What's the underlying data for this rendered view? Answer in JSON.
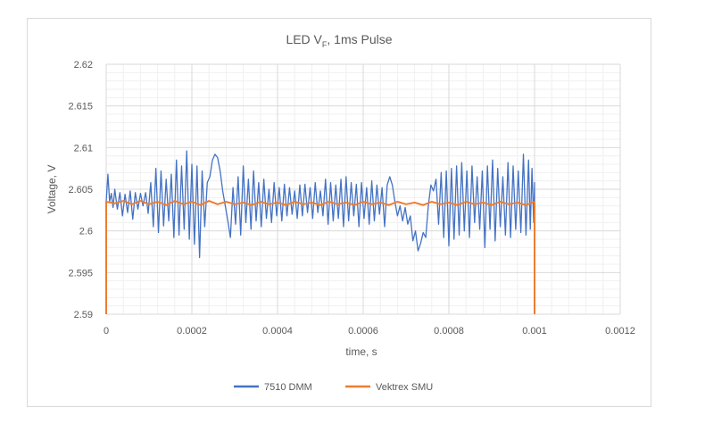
{
  "chart_data": {
    "type": "line",
    "title": "LED V",
    "title_subscript": "F",
    "title_suffix": ", 1ms Pulse",
    "xlabel": "time, s",
    "ylabel": "Voltage, V",
    "xlim": [
      0,
      0.0012
    ],
    "ylim": [
      2.59,
      2.62
    ],
    "x_ticks": [
      "0",
      "0.0002",
      "0.0004",
      "0.0006",
      "0.0008",
      "0.001",
      "0.0012"
    ],
    "y_ticks": [
      "2.59",
      "2.595",
      "2.6",
      "2.605",
      "2.61",
      "2.615",
      "2.62"
    ],
    "grid": true,
    "legend_position": "bottom",
    "series": [
      {
        "name": "7510 DMM",
        "color": "#4472C4",
        "points": [
          [
            0,
            2.59
          ],
          [
            0,
            2.6035
          ],
          [
            4e-06,
            2.6068
          ],
          [
            8e-06,
            2.6035
          ],
          [
            1.2e-05,
            2.6045
          ],
          [
            1.6e-05,
            2.6028
          ],
          [
            2e-05,
            2.605
          ],
          [
            2.6e-05,
            2.6026
          ],
          [
            3.2e-05,
            2.6046
          ],
          [
            3.8e-05,
            2.6018
          ],
          [
            4.4e-05,
            2.6044
          ],
          [
            5e-05,
            2.6022
          ],
          [
            5.6e-05,
            2.6048
          ],
          [
            6.2e-05,
            2.6014
          ],
          [
            6.8e-05,
            2.6046
          ],
          [
            7.4e-05,
            2.6026
          ],
          [
            8e-05,
            2.6045
          ],
          [
            8.6e-05,
            2.603
          ],
          [
            9.2e-05,
            2.6046
          ],
          [
            9.8e-05,
            2.6021
          ],
          [
            0.000104,
            2.6058
          ],
          [
            0.00011,
            2.6005
          ],
          [
            0.000116,
            2.6075
          ],
          [
            0.000122,
            2.5998
          ],
          [
            0.000128,
            2.6072
          ],
          [
            0.000134,
            2.6006
          ],
          [
            0.00014,
            2.6062
          ],
          [
            0.000146,
            2.6012
          ],
          [
            0.000152,
            2.6068
          ],
          [
            0.000158,
            2.5992
          ],
          [
            0.000164,
            2.6085
          ],
          [
            0.00017,
            2.5995
          ],
          [
            0.000176,
            2.6078
          ],
          [
            0.000182,
            2.6002
          ],
          [
            0.000188,
            2.6096
          ],
          [
            0.000194,
            2.599
          ],
          [
            0.0002,
            2.608
          ],
          [
            0.000206,
            2.5984
          ],
          [
            0.000212,
            2.6078
          ],
          [
            0.000218,
            2.5968
          ],
          [
            0.000224,
            2.6072
          ],
          [
            0.00023,
            2.6005
          ],
          [
            0.000236,
            2.6058
          ],
          [
            0.000242,
            2.6065
          ],
          [
            0.000248,
            2.6085
          ],
          [
            0.000254,
            2.6092
          ],
          [
            0.00026,
            2.6088
          ],
          [
            0.000266,
            2.6072
          ],
          [
            0.000272,
            2.6048
          ],
          [
            0.000278,
            2.603
          ],
          [
            0.000284,
            2.6012
          ],
          [
            0.00029,
            2.5992
          ],
          [
            0.000296,
            2.6052
          ],
          [
            0.000302,
            2.6008
          ],
          [
            0.000308,
            2.6065
          ],
          [
            0.000314,
            2.5995
          ],
          [
            0.00032,
            2.6078
          ],
          [
            0.000326,
            2.601
          ],
          [
            0.000332,
            2.6062
          ],
          [
            0.000338,
            2.6002
          ],
          [
            0.000344,
            2.6072
          ],
          [
            0.00035,
            2.6012
          ],
          [
            0.000356,
            2.6058
          ],
          [
            0.000362,
            2.6005
          ],
          [
            0.000368,
            2.6062
          ],
          [
            0.000374,
            2.6015
          ],
          [
            0.00038,
            2.605
          ],
          [
            0.000386,
            2.601
          ],
          [
            0.000392,
            2.6058
          ],
          [
            0.000398,
            2.6018
          ],
          [
            0.000404,
            2.6052
          ],
          [
            0.00041,
            2.6012
          ],
          [
            0.000416,
            2.6056
          ],
          [
            0.000422,
            2.6018
          ],
          [
            0.000428,
            2.6052
          ],
          [
            0.000434,
            2.602
          ],
          [
            0.00044,
            2.6048
          ],
          [
            0.000446,
            2.6015
          ],
          [
            0.000452,
            2.6055
          ],
          [
            0.000458,
            2.6018
          ],
          [
            0.000464,
            2.6056
          ],
          [
            0.00047,
            2.6022
          ],
          [
            0.000476,
            2.6052
          ],
          [
            0.000482,
            2.6015
          ],
          [
            0.000488,
            2.6058
          ],
          [
            0.000494,
            2.6022
          ],
          [
            0.0005,
            2.6048
          ],
          [
            0.000506,
            2.6018
          ],
          [
            0.000512,
            2.6062
          ],
          [
            0.000518,
            2.6008
          ],
          [
            0.000524,
            2.6058
          ],
          [
            0.00053,
            2.6012
          ],
          [
            0.000536,
            2.6055
          ],
          [
            0.000542,
            2.6015
          ],
          [
            0.000548,
            2.6062
          ],
          [
            0.000554,
            2.6005
          ],
          [
            0.00056,
            2.6065
          ],
          [
            0.000566,
            2.6012
          ],
          [
            0.000572,
            2.6058
          ],
          [
            0.000578,
            2.6018
          ],
          [
            0.000584,
            2.6056
          ],
          [
            0.00059,
            2.6005
          ],
          [
            0.000596,
            2.6058
          ],
          [
            0.000602,
            2.6015
          ],
          [
            0.000608,
            2.6052
          ],
          [
            0.000614,
            2.6008
          ],
          [
            0.00062,
            2.606
          ],
          [
            0.000626,
            2.6012
          ],
          [
            0.000632,
            2.6055
          ],
          [
            0.000638,
            2.602
          ],
          [
            0.000644,
            2.6052
          ],
          [
            0.00065,
            2.6005
          ],
          [
            0.000656,
            2.6055
          ],
          [
            0.000662,
            2.6065
          ],
          [
            0.000668,
            2.6055
          ],
          [
            0.000674,
            2.6035
          ],
          [
            0.00068,
            2.6018
          ],
          [
            0.000686,
            2.603
          ],
          [
            0.000692,
            2.6012
          ],
          [
            0.000698,
            2.6028
          ],
          [
            0.000704,
            2.6008
          ],
          [
            0.00071,
            2.6018
          ],
          [
            0.000716,
            2.5988
          ],
          [
            0.000722,
            2.6
          ],
          [
            0.000728,
            2.5976
          ],
          [
            0.000734,
            2.5985
          ],
          [
            0.00074,
            2.5998
          ],
          [
            0.000746,
            2.5992
          ],
          [
            0.000752,
            2.603
          ],
          [
            0.000758,
            2.6055
          ],
          [
            0.000764,
            2.6048
          ],
          [
            0.00077,
            2.6062
          ],
          [
            0.000776,
            2.6008
          ],
          [
            0.000782,
            2.607
          ],
          [
            0.000788,
            2.5992
          ],
          [
            0.000794,
            2.6072
          ],
          [
            0.0008,
            2.5982
          ],
          [
            0.000806,
            2.6075
          ],
          [
            0.000812,
            2.599
          ],
          [
            0.000818,
            2.6078
          ],
          [
            0.000824,
            2.5995
          ],
          [
            0.00083,
            2.6082
          ],
          [
            0.000836,
            2.6
          ],
          [
            0.000842,
            2.6072
          ],
          [
            0.000848,
            2.5992
          ],
          [
            0.000854,
            2.6078
          ],
          [
            0.00086,
            2.601
          ],
          [
            0.000866,
            2.6065
          ],
          [
            0.000872,
            2.6002
          ],
          [
            0.000878,
            2.6072
          ],
          [
            0.000884,
            2.598
          ],
          [
            0.00089,
            2.6078
          ],
          [
            0.000896,
            2.6002
          ],
          [
            0.000902,
            2.6085
          ],
          [
            0.000908,
            2.5988
          ],
          [
            0.000914,
            2.6075
          ],
          [
            0.00092,
            2.6005
          ],
          [
            0.000926,
            2.6065
          ],
          [
            0.000932,
            2.5995
          ],
          [
            0.000938,
            2.6082
          ],
          [
            0.000944,
            2.5992
          ],
          [
            0.00095,
            2.6078
          ],
          [
            0.000956,
            2.6002
          ],
          [
            0.000962,
            2.6072
          ],
          [
            0.000968,
            2.5998
          ],
          [
            0.000974,
            2.6092
          ],
          [
            0.00098,
            2.5995
          ],
          [
            0.000986,
            2.6085
          ],
          [
            0.00099,
            2.6002
          ],
          [
            0.000994,
            2.6075
          ],
          [
            0.000998,
            2.601
          ],
          [
            0.001,
            2.6058
          ],
          [
            0.001,
            2.59
          ]
        ]
      },
      {
        "name": "Vektrex SMU",
        "color": "#ED7D31",
        "points": [
          [
            0,
            2.59
          ],
          [
            0,
            2.6035
          ],
          [
            2e-05,
            2.6033
          ],
          [
            4e-05,
            2.6036
          ],
          [
            6e-05,
            2.6032
          ],
          [
            8e-05,
            2.6036
          ],
          [
            0.0001,
            2.6032
          ],
          [
            0.00012,
            2.6035
          ],
          [
            0.00014,
            2.6031
          ],
          [
            0.00016,
            2.6036
          ],
          [
            0.00018,
            2.6032
          ],
          [
            0.0002,
            2.6035
          ],
          [
            0.00022,
            2.6031
          ],
          [
            0.00024,
            2.6036
          ],
          [
            0.00026,
            2.6032
          ],
          [
            0.00028,
            2.6035
          ],
          [
            0.0003,
            2.6032
          ],
          [
            0.00032,
            2.6034
          ],
          [
            0.00034,
            2.6031
          ],
          [
            0.00036,
            2.6035
          ],
          [
            0.00038,
            2.6032
          ],
          [
            0.0004,
            2.6034
          ],
          [
            0.00042,
            2.6031
          ],
          [
            0.00044,
            2.6035
          ],
          [
            0.00046,
            2.6032
          ],
          [
            0.00048,
            2.6034
          ],
          [
            0.0005,
            2.6031
          ],
          [
            0.00052,
            2.6035
          ],
          [
            0.00054,
            2.6032
          ],
          [
            0.00056,
            2.6034
          ],
          [
            0.00058,
            2.6031
          ],
          [
            0.0006,
            2.6035
          ],
          [
            0.00062,
            2.6032
          ],
          [
            0.00064,
            2.6034
          ],
          [
            0.00066,
            2.6031
          ],
          [
            0.00068,
            2.6035
          ],
          [
            0.0007,
            2.6032
          ],
          [
            0.00072,
            2.6034
          ],
          [
            0.00074,
            2.6031
          ],
          [
            0.00076,
            2.6035
          ],
          [
            0.00078,
            2.6032
          ],
          [
            0.0008,
            2.6034
          ],
          [
            0.00082,
            2.6031
          ],
          [
            0.00084,
            2.6035
          ],
          [
            0.00086,
            2.6032
          ],
          [
            0.00088,
            2.6034
          ],
          [
            0.0009,
            2.6031
          ],
          [
            0.00092,
            2.6035
          ],
          [
            0.00094,
            2.6032
          ],
          [
            0.00096,
            2.6034
          ],
          [
            0.00098,
            2.6031
          ],
          [
            0.001,
            2.6035
          ],
          [
            0.001,
            2.59
          ]
        ]
      }
    ]
  }
}
